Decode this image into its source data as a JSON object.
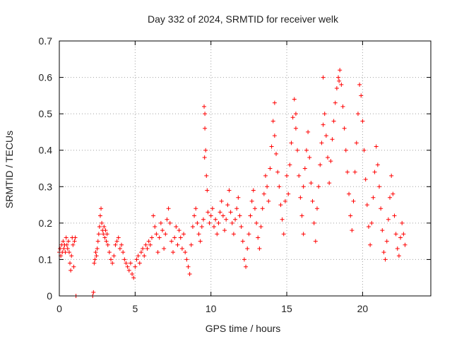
{
  "chart_data": {
    "type": "scatter",
    "title": "Day 332 of 2024, SRMTID for receiver welk",
    "xlabel": "GPS time / hours",
    "ylabel": "SRMTID / TECUs",
    "xlim": [
      0,
      24.5
    ],
    "ylim": [
      0,
      0.7
    ],
    "xticks": [
      0,
      5,
      10,
      15,
      20
    ],
    "yticks": [
      0,
      0.1,
      0.2,
      0.3,
      0.4,
      0.5,
      0.6,
      0.7
    ],
    "xtick_labels": [
      "0",
      "5",
      "10",
      "15",
      "20"
    ],
    "ytick_labels": [
      "0",
      "0.1",
      "0.2",
      "0.3",
      "0.4",
      "0.5",
      "0.6",
      "0.7"
    ],
    "grid": true,
    "marker": "+",
    "series": [
      {
        "name": "welk",
        "color": "#ff0000",
        "points": [
          [
            0.0,
            0.12
          ],
          [
            0.05,
            0.13
          ],
          [
            0.1,
            0.11
          ],
          [
            0.15,
            0.14
          ],
          [
            0.2,
            0.12
          ],
          [
            0.25,
            0.15
          ],
          [
            0.3,
            0.13
          ],
          [
            0.35,
            0.14
          ],
          [
            0.4,
            0.12
          ],
          [
            0.45,
            0.16
          ],
          [
            0.5,
            0.14
          ],
          [
            0.55,
            0.13
          ],
          [
            0.6,
            0.15
          ],
          [
            0.65,
            0.12
          ],
          [
            0.7,
            0.09
          ],
          [
            0.75,
            0.07
          ],
          [
            0.8,
            0.11
          ],
          [
            0.85,
            0.16
          ],
          [
            0.9,
            0.14
          ],
          [
            0.95,
            0.08
          ],
          [
            1.0,
            0.15
          ],
          [
            1.05,
            0.16
          ],
          [
            1.1,
            0.0
          ],
          [
            2.2,
            0.0
          ],
          [
            2.25,
            0.01
          ],
          [
            2.3,
            0.09
          ],
          [
            2.35,
            0.1
          ],
          [
            2.4,
            0.12
          ],
          [
            2.45,
            0.11
          ],
          [
            2.5,
            0.13
          ],
          [
            2.55,
            0.15
          ],
          [
            2.6,
            0.17
          ],
          [
            2.65,
            0.19
          ],
          [
            2.7,
            0.22
          ],
          [
            2.75,
            0.24
          ],
          [
            2.8,
            0.2
          ],
          [
            2.85,
            0.18
          ],
          [
            2.9,
            0.17
          ],
          [
            2.95,
            0.19
          ],
          [
            3.0,
            0.16
          ],
          [
            3.05,
            0.18
          ],
          [
            3.1,
            0.15
          ],
          [
            3.15,
            0.17
          ],
          [
            3.2,
            0.14
          ],
          [
            3.3,
            0.12
          ],
          [
            3.4,
            0.1
          ],
          [
            3.5,
            0.09
          ],
          [
            3.6,
            0.11
          ],
          [
            3.7,
            0.14
          ],
          [
            3.8,
            0.15
          ],
          [
            3.9,
            0.16
          ],
          [
            4.0,
            0.13
          ],
          [
            4.1,
            0.14
          ],
          [
            4.2,
            0.12
          ],
          [
            4.3,
            0.1
          ],
          [
            4.4,
            0.09
          ],
          [
            4.5,
            0.08
          ],
          [
            4.6,
            0.07
          ],
          [
            4.7,
            0.09
          ],
          [
            4.8,
            0.06
          ],
          [
            4.9,
            0.05
          ],
          [
            5.0,
            0.08
          ],
          [
            5.1,
            0.1
          ],
          [
            5.2,
            0.11
          ],
          [
            5.3,
            0.09
          ],
          [
            5.4,
            0.12
          ],
          [
            5.5,
            0.13
          ],
          [
            5.6,
            0.11
          ],
          [
            5.7,
            0.14
          ],
          [
            5.8,
            0.13
          ],
          [
            5.9,
            0.15
          ],
          [
            6.0,
            0.14
          ],
          [
            6.1,
            0.16
          ],
          [
            6.2,
            0.22
          ],
          [
            6.3,
            0.19
          ],
          [
            6.4,
            0.17
          ],
          [
            6.5,
            0.12
          ],
          [
            6.6,
            0.16
          ],
          [
            6.7,
            0.2
          ],
          [
            6.8,
            0.18
          ],
          [
            6.9,
            0.13
          ],
          [
            7.0,
            0.17
          ],
          [
            7.1,
            0.21
          ],
          [
            7.2,
            0.24
          ],
          [
            7.3,
            0.2
          ],
          [
            7.4,
            0.15
          ],
          [
            7.5,
            0.12
          ],
          [
            7.6,
            0.16
          ],
          [
            7.7,
            0.19
          ],
          [
            7.8,
            0.14
          ],
          [
            7.9,
            0.18
          ],
          [
            8.0,
            0.16
          ],
          [
            8.1,
            0.13
          ],
          [
            8.2,
            0.17
          ],
          [
            8.3,
            0.12
          ],
          [
            8.4,
            0.1
          ],
          [
            8.5,
            0.08
          ],
          [
            8.6,
            0.06
          ],
          [
            8.7,
            0.14
          ],
          [
            8.8,
            0.19
          ],
          [
            8.9,
            0.22
          ],
          [
            9.0,
            0.24
          ],
          [
            9.1,
            0.2
          ],
          [
            9.2,
            0.17
          ],
          [
            9.3,
            0.15
          ],
          [
            9.4,
            0.19
          ],
          [
            9.5,
            0.21
          ],
          [
            9.55,
            0.52
          ],
          [
            9.6,
            0.5
          ],
          [
            9.65,
            0.4
          ],
          [
            9.7,
            0.33
          ],
          [
            9.75,
            0.29
          ],
          [
            9.8,
            0.23
          ],
          [
            9.9,
            0.2
          ],
          [
            10.0,
            0.22
          ],
          [
            10.1,
            0.24
          ],
          [
            10.2,
            0.19
          ],
          [
            10.3,
            0.21
          ],
          [
            10.4,
            0.17
          ],
          [
            10.5,
            0.2
          ],
          [
            10.6,
            0.23
          ],
          [
            10.7,
            0.26
          ],
          [
            10.8,
            0.22
          ],
          [
            10.9,
            0.18
          ],
          [
            11.0,
            0.21
          ],
          [
            11.1,
            0.25
          ],
          [
            11.2,
            0.29
          ],
          [
            11.3,
            0.23
          ],
          [
            11.4,
            0.2
          ],
          [
            11.5,
            0.17
          ],
          [
            11.6,
            0.21
          ],
          [
            11.7,
            0.24
          ],
          [
            11.8,
            0.27
          ],
          [
            11.9,
            0.22
          ],
          [
            12.0,
            0.19
          ],
          [
            12.1,
            0.15
          ],
          [
            12.2,
            0.1
          ],
          [
            12.3,
            0.08
          ],
          [
            12.4,
            0.13
          ],
          [
            12.5,
            0.17
          ],
          [
            12.6,
            0.22
          ],
          [
            12.7,
            0.26
          ],
          [
            12.8,
            0.29
          ],
          [
            12.9,
            0.24
          ],
          [
            13.0,
            0.2
          ],
          [
            13.1,
            0.16
          ],
          [
            13.2,
            0.13
          ],
          [
            13.3,
            0.19
          ],
          [
            13.4,
            0.24
          ],
          [
            13.5,
            0.28
          ],
          [
            13.6,
            0.33
          ],
          [
            13.7,
            0.3
          ],
          [
            13.8,
            0.26
          ],
          [
            13.9,
            0.35
          ],
          [
            14.0,
            0.41
          ],
          [
            14.1,
            0.48
          ],
          [
            14.2,
            0.44
          ],
          [
            14.3,
            0.39
          ],
          [
            14.4,
            0.34
          ],
          [
            14.5,
            0.3
          ],
          [
            14.6,
            0.25
          ],
          [
            14.7,
            0.21
          ],
          [
            14.8,
            0.17
          ],
          [
            14.9,
            0.26
          ],
          [
            15.0,
            0.33
          ],
          [
            15.1,
            0.28
          ],
          [
            15.2,
            0.36
          ],
          [
            15.3,
            0.42
          ],
          [
            15.4,
            0.49
          ],
          [
            15.5,
            0.54
          ],
          [
            15.6,
            0.46
          ],
          [
            15.7,
            0.4
          ],
          [
            15.8,
            0.33
          ],
          [
            15.9,
            0.27
          ],
          [
            16.0,
            0.22
          ],
          [
            16.1,
            0.3
          ],
          [
            16.2,
            0.35
          ],
          [
            16.3,
            0.4
          ],
          [
            16.4,
            0.45
          ],
          [
            16.5,
            0.38
          ],
          [
            16.6,
            0.31
          ],
          [
            16.7,
            0.26
          ],
          [
            16.8,
            0.2
          ],
          [
            16.9,
            0.15
          ],
          [
            17.0,
            0.24
          ],
          [
            17.1,
            0.3
          ],
          [
            17.2,
            0.36
          ],
          [
            17.3,
            0.42
          ],
          [
            17.4,
            0.47
          ],
          [
            17.5,
            0.5
          ],
          [
            17.6,
            0.44
          ],
          [
            17.7,
            0.38
          ],
          [
            17.8,
            0.31
          ],
          [
            17.9,
            0.37
          ],
          [
            18.0,
            0.43
          ],
          [
            18.1,
            0.48
          ],
          [
            18.2,
            0.53
          ],
          [
            18.3,
            0.57
          ],
          [
            18.4,
            0.6
          ],
          [
            18.5,
            0.62
          ],
          [
            18.6,
            0.58
          ],
          [
            18.7,
            0.52
          ],
          [
            18.8,
            0.46
          ],
          [
            18.9,
            0.4
          ],
          [
            19.0,
            0.34
          ],
          [
            19.1,
            0.28
          ],
          [
            19.2,
            0.22
          ],
          [
            19.3,
            0.18
          ],
          [
            19.4,
            0.26
          ],
          [
            19.5,
            0.34
          ],
          [
            19.6,
            0.42
          ],
          [
            19.7,
            0.5
          ],
          [
            19.8,
            0.58
          ],
          [
            19.9,
            0.55
          ],
          [
            20.0,
            0.48
          ],
          [
            20.1,
            0.4
          ],
          [
            20.2,
            0.32
          ],
          [
            20.3,
            0.25
          ],
          [
            20.4,
            0.19
          ],
          [
            20.5,
            0.14
          ],
          [
            20.6,
            0.2
          ],
          [
            20.7,
            0.27
          ],
          [
            20.8,
            0.34
          ],
          [
            20.9,
            0.41
          ],
          [
            21.0,
            0.36
          ],
          [
            21.1,
            0.3
          ],
          [
            21.2,
            0.24
          ],
          [
            21.3,
            0.18
          ],
          [
            21.4,
            0.12
          ],
          [
            21.5,
            0.1
          ],
          [
            21.6,
            0.15
          ],
          [
            21.7,
            0.21
          ],
          [
            21.8,
            0.27
          ],
          [
            21.9,
            0.33
          ],
          [
            22.0,
            0.28
          ],
          [
            22.1,
            0.22
          ],
          [
            22.2,
            0.17
          ],
          [
            22.3,
            0.13
          ],
          [
            22.4,
            0.11
          ],
          [
            22.5,
            0.16
          ],
          [
            22.6,
            0.2
          ],
          [
            22.7,
            0.17
          ],
          [
            22.8,
            0.14
          ],
          [
            9.6,
            0.46
          ],
          [
            9.58,
            0.38
          ],
          [
            17.4,
            0.6
          ],
          [
            18.45,
            0.59
          ],
          [
            14.2,
            0.53
          ],
          [
            15.6,
            0.5
          ],
          [
            16.1,
            0.17
          ]
        ]
      }
    ]
  }
}
